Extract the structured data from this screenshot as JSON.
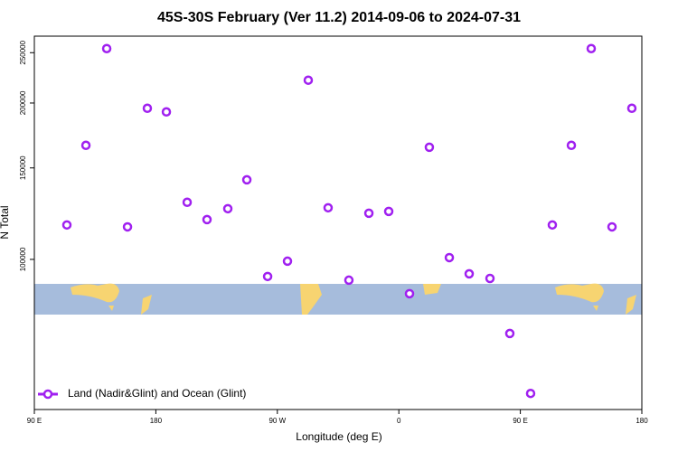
{
  "chart_data": {
    "type": "scatter",
    "title": "45S-30S February (Ver 11.2)   2014-09-06 to 2024-07-31",
    "x_label": "Longitude (deg E)",
    "y_label": "N Total",
    "x": [
      114.1,
      128.2,
      143.6,
      159.0,
      173.7,
      187.8,
      203.2,
      217.9,
      233.3,
      247.4,
      262.8,
      277.5,
      292.9,
      307.6,
      323.0,
      337.8,
      352.5,
      367.9,
      382.6,
      397.4,
      412.1,
      427.5,
      442.2,
      457.6,
      473.7,
      487.8,
      502.5,
      517.9,
      532.6
    ],
    "series": [
      {
        "name": "Land (Nadir&Glint) and Ocean (Glint)",
        "color": "#a020f0",
        "values": [
          116500,
          165800,
          254600,
          115500,
          195400,
          192300,
          128800,
          119300,
          125200,
          142300,
          92700,
          99200,
          221300,
          125700,
          91200,
          122700,
          123700,
          85900,
          164400,
          100800,
          93800,
          91900,
          72000,
          55200,
          116500,
          165800,
          254600,
          115500,
          195400
        ]
      }
    ],
    "xlim": [
      90,
      540
    ],
    "xticks": [
      {
        "value": 90,
        "label": "90 E"
      },
      {
        "value": 180,
        "label": "180"
      },
      {
        "value": 270,
        "label": "90 W"
      },
      {
        "value": 360,
        "label": "0"
      },
      {
        "value": 450,
        "label": "90 E"
      },
      {
        "value": 540,
        "label": "180"
      }
    ],
    "ylim": [
      51400,
      269000
    ],
    "yticks": [
      100000,
      150000,
      200000,
      250000
    ],
    "log_y": true,
    "legend": "bottom-left"
  }
}
